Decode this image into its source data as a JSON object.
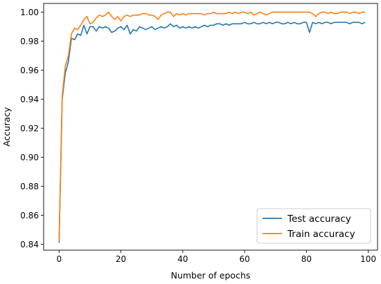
{
  "chart_data": {
    "type": "line",
    "title": "",
    "xlabel": "Number of epochs",
    "ylabel": "Accuracy",
    "xlim": [
      -5,
      103
    ],
    "ylim": [
      0.836,
      1.006
    ],
    "xticks": [
      0,
      20,
      40,
      60,
      80,
      100
    ],
    "yticks": [
      0.84,
      0.86,
      0.88,
      0.9,
      0.92,
      0.94,
      0.96,
      0.98,
      1.0
    ],
    "xtick_labels": [
      "0",
      "20",
      "40",
      "60",
      "80",
      "100"
    ],
    "ytick_labels": [
      "0.84",
      "0.86",
      "0.88",
      "0.90",
      "0.92",
      "0.94",
      "0.96",
      "0.98",
      "1.00"
    ],
    "grid": false,
    "legend_position": "lower right",
    "series": [
      {
        "name": "Test accuracy",
        "color": "#1f77b4",
        "x": [
          0,
          1,
          2,
          3,
          4,
          5,
          6,
          7,
          8,
          9,
          10,
          11,
          12,
          13,
          14,
          15,
          16,
          17,
          18,
          19,
          20,
          21,
          22,
          23,
          24,
          25,
          26,
          27,
          28,
          29,
          30,
          31,
          32,
          33,
          34,
          35,
          36,
          37,
          38,
          39,
          40,
          41,
          42,
          43,
          44,
          45,
          46,
          47,
          48,
          49,
          50,
          51,
          52,
          53,
          54,
          55,
          56,
          57,
          58,
          59,
          60,
          61,
          62,
          63,
          64,
          65,
          66,
          67,
          68,
          69,
          70,
          71,
          72,
          73,
          74,
          75,
          76,
          77,
          78,
          79,
          80,
          81,
          82,
          83,
          84,
          85,
          86,
          87,
          88,
          89,
          90,
          91,
          92,
          93,
          94,
          95,
          96,
          97,
          98,
          99
        ],
        "y": [
          0.841,
          0.94,
          0.958,
          0.966,
          0.982,
          0.981,
          0.985,
          0.984,
          0.991,
          0.985,
          0.99,
          0.99,
          0.987,
          0.99,
          0.989,
          0.99,
          0.989,
          0.986,
          0.987,
          0.989,
          0.99,
          0.988,
          0.991,
          0.985,
          0.988,
          0.987,
          0.99,
          0.989,
          0.988,
          0.989,
          0.99,
          0.988,
          0.989,
          0.99,
          0.989,
          0.99,
          0.992,
          0.99,
          0.991,
          0.989,
          0.99,
          0.989,
          0.99,
          0.989,
          0.99,
          0.989,
          0.99,
          0.991,
          0.99,
          0.991,
          0.991,
          0.992,
          0.992,
          0.991,
          0.992,
          0.991,
          0.992,
          0.992,
          0.992,
          0.992,
          0.993,
          0.992,
          0.992,
          0.993,
          0.992,
          0.992,
          0.993,
          0.992,
          0.993,
          0.992,
          0.993,
          0.993,
          0.992,
          0.992,
          0.993,
          0.992,
          0.993,
          0.992,
          0.992,
          0.993,
          0.993,
          0.986,
          0.993,
          0.992,
          0.993,
          0.992,
          0.993,
          0.993,
          0.992,
          0.993,
          0.993,
          0.993,
          0.993,
          0.993,
          0.992,
          0.993,
          0.993,
          0.993,
          0.992,
          0.993
        ]
      },
      {
        "name": "Train accuracy",
        "color": "#ff7f0e",
        "x": [
          0,
          1,
          2,
          3,
          4,
          5,
          6,
          7,
          8,
          9,
          10,
          11,
          12,
          13,
          14,
          15,
          16,
          17,
          18,
          19,
          20,
          21,
          22,
          23,
          24,
          25,
          26,
          27,
          28,
          29,
          30,
          31,
          32,
          33,
          34,
          35,
          36,
          37,
          38,
          39,
          40,
          41,
          42,
          43,
          44,
          45,
          46,
          47,
          48,
          49,
          50,
          51,
          52,
          53,
          54,
          55,
          56,
          57,
          58,
          59,
          60,
          61,
          62,
          63,
          64,
          65,
          66,
          67,
          68,
          69,
          70,
          71,
          72,
          73,
          74,
          75,
          76,
          77,
          78,
          79,
          80,
          81,
          82,
          83,
          84,
          85,
          86,
          87,
          88,
          89,
          90,
          91,
          92,
          93,
          94,
          95,
          96,
          97,
          98,
          99
        ],
        "y": [
          0.842,
          0.942,
          0.963,
          0.97,
          0.985,
          0.989,
          0.988,
          0.991,
          0.995,
          0.997,
          0.992,
          0.993,
          0.996,
          0.998,
          0.997,
          0.998,
          1.0,
          0.997,
          0.995,
          0.997,
          0.994,
          0.997,
          0.998,
          0.997,
          0.998,
          0.998,
          0.998,
          0.999,
          0.999,
          0.998,
          0.998,
          0.997,
          0.995,
          0.998,
          0.999,
          1.0,
          1.0,
          0.997,
          0.999,
          0.998,
          0.999,
          0.998,
          0.999,
          0.999,
          0.999,
          0.999,
          0.999,
          0.998,
          0.999,
          0.999,
          1.0,
          0.999,
          0.999,
          0.999,
          0.999,
          1.0,
          0.999,
          1.0,
          0.999,
          1.0,
          1.0,
          0.999,
          1.0,
          0.998,
          0.999,
          1.0,
          0.999,
          0.998,
          0.999,
          1.0,
          1.0,
          1.0,
          1.0,
          1.0,
          1.0,
          1.0,
          1.0,
          1.0,
          1.0,
          1.0,
          1.0,
          1.0,
          0.999,
          0.997,
          0.999,
          1.0,
          1.0,
          0.999,
          1.0,
          0.999,
          0.999,
          1.0,
          1.0,
          1.0,
          0.999,
          1.0,
          1.0,
          0.999,
          1.0,
          1.0
        ]
      }
    ]
  }
}
